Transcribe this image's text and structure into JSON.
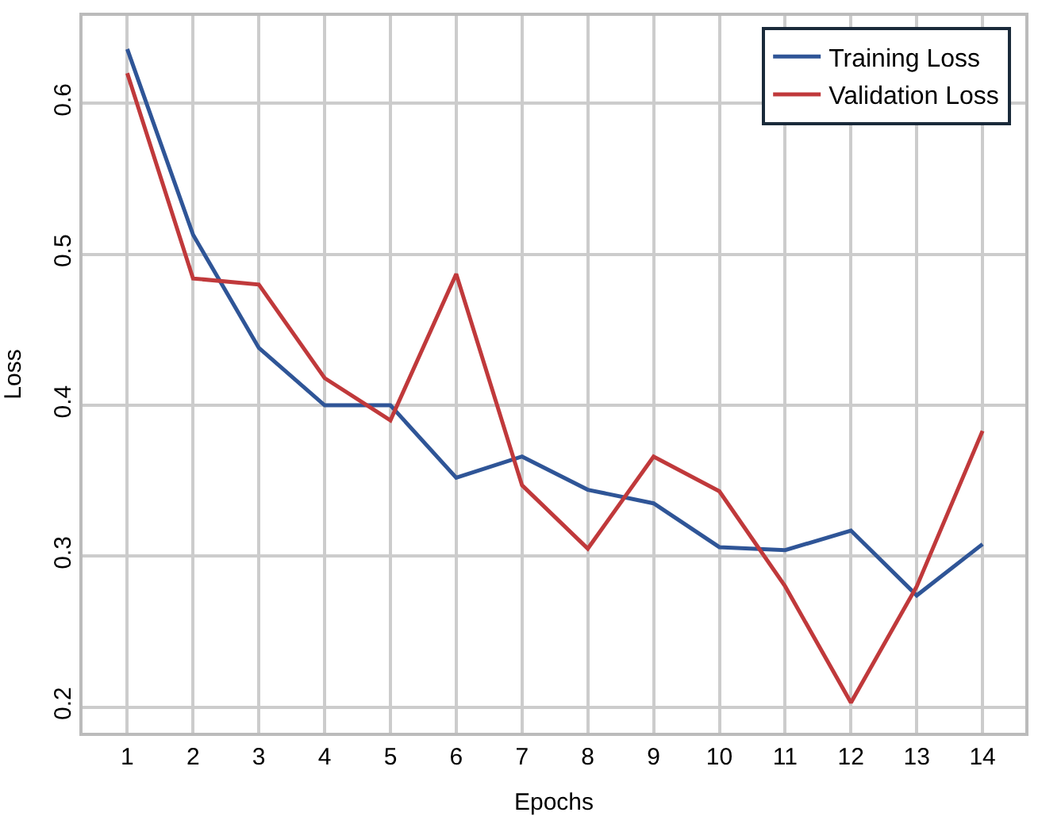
{
  "chart_data": {
    "type": "line",
    "xlabel": "Epochs",
    "ylabel": "Loss",
    "x": [
      1,
      2,
      3,
      4,
      5,
      6,
      7,
      8,
      9,
      10,
      11,
      12,
      13,
      14
    ],
    "series": [
      {
        "name": "Training Loss",
        "color": "#2f5597",
        "values": [
          0.636,
          0.513,
          0.438,
          0.4,
          0.4,
          0.352,
          0.366,
          0.344,
          0.335,
          0.306,
          0.304,
          0.317,
          0.274,
          0.308
        ]
      },
      {
        "name": "Validation Loss",
        "color": "#c0393b",
        "values": [
          0.62,
          0.484,
          0.48,
          0.418,
          0.39,
          0.487,
          0.347,
          0.305,
          0.366,
          0.343,
          0.28,
          0.203,
          0.28,
          0.383
        ]
      }
    ],
    "xlim": [
      0.32,
      14.65
    ],
    "xticks": [
      1,
      2,
      3,
      4,
      5,
      6,
      7,
      8,
      9,
      10,
      11,
      12,
      13,
      14
    ],
    "ylim": [
      0.183,
      0.658
    ],
    "yticks": [
      0.2,
      0.3,
      0.4,
      0.5,
      0.6
    ],
    "grid": true,
    "legend": "top right",
    "marker": "none",
    "line_style": "solid"
  }
}
